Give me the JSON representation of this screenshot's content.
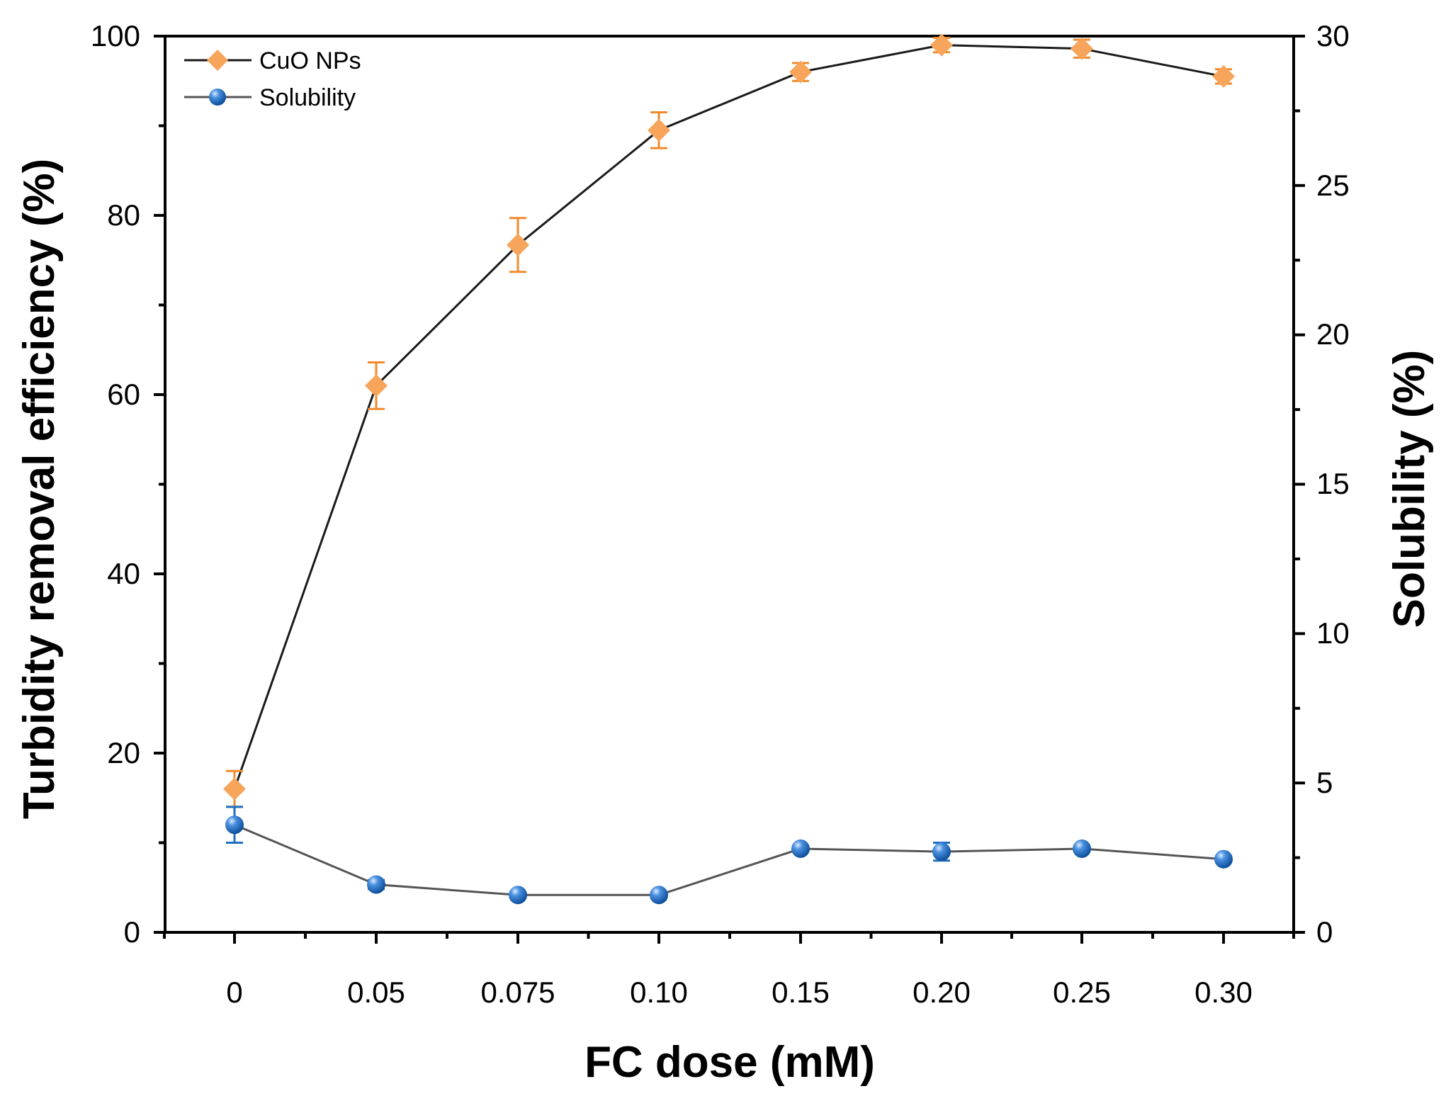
{
  "chart_data": {
    "type": "line",
    "xlabel": "FC dose (mM)",
    "ylabel_left": "Turbidity removal efficiency (%)",
    "ylabel_right": "Solubility (%)",
    "categories": [
      "0",
      "0.05",
      "0.075",
      "0.10",
      "0.15",
      "0.20",
      "0.25",
      "0.30"
    ],
    "ylim_left": [
      0,
      100
    ],
    "ylim_right": [
      0,
      30
    ],
    "yticks_left": [
      "0",
      "20",
      "40",
      "60",
      "80",
      "100"
    ],
    "yticks_right": [
      "0",
      "5",
      "10",
      "15",
      "20",
      "25",
      "30"
    ],
    "grid": false,
    "legend_position": "top-left",
    "series": [
      {
        "name": "CuO NPs",
        "axis": "left",
        "marker": "diamond",
        "marker_color": "#F7A55A",
        "errorbar_color": "#F08A2C",
        "line_color": "#1a1a1a",
        "values": [
          16,
          61,
          76.7,
          89.5,
          96,
          99,
          98.6,
          95.5
        ],
        "errors": [
          2,
          2.6,
          3,
          2,
          1,
          0.8,
          1,
          0.8
        ]
      },
      {
        "name": "Solubility",
        "axis": "right",
        "marker": "circle",
        "marker_color": "#1E6FC1",
        "errorbar_color": "#1E6FC1",
        "line_color": "#555555",
        "values": [
          3.6,
          1.6,
          1.25,
          1.25,
          2.8,
          2.7,
          2.8,
          2.45
        ],
        "errors": [
          0.6,
          0.15,
          0.1,
          0.1,
          0.1,
          0.3,
          0.1,
          0.1
        ]
      }
    ]
  }
}
